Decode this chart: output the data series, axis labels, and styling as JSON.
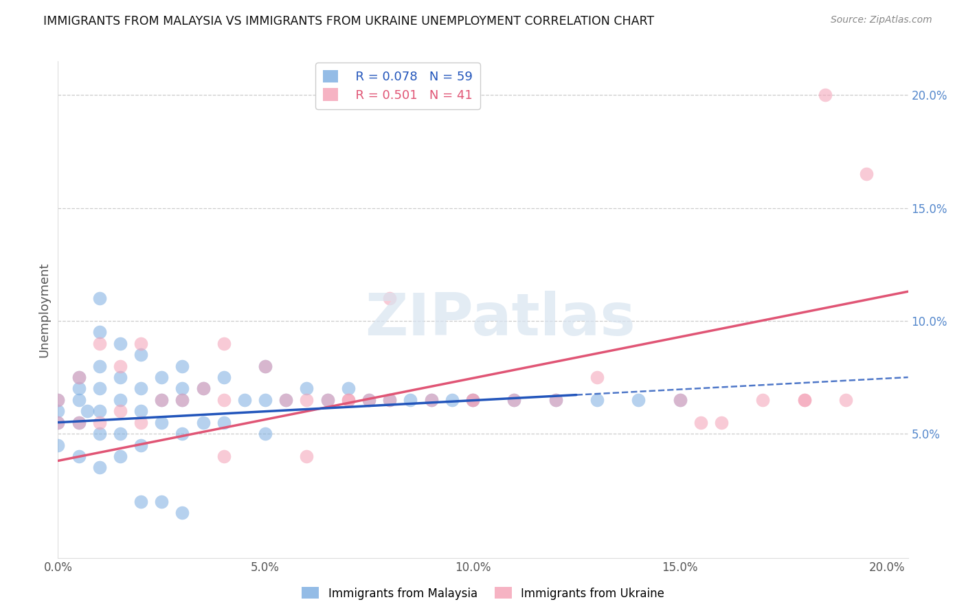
{
  "title": "IMMIGRANTS FROM MALAYSIA VS IMMIGRANTS FROM UKRAINE UNEMPLOYMENT CORRELATION CHART",
  "source": "Source: ZipAtlas.com",
  "ylabel": "Unemployment",
  "xlim": [
    0.0,
    0.205
  ],
  "ylim": [
    -0.005,
    0.215
  ],
  "xticks": [
    0.0,
    0.05,
    0.1,
    0.15,
    0.2
  ],
  "yticks": [
    0.05,
    0.1,
    0.15,
    0.2
  ],
  "xtick_labels": [
    "0.0%",
    "5.0%",
    "10.0%",
    "15.0%",
    "20.0%"
  ],
  "ytick_labels": [
    "5.0%",
    "10.0%",
    "15.0%",
    "20.0%"
  ],
  "malaysia_color": "#7aace0",
  "ukraine_color": "#f4a0b5",
  "malaysia_line_color": "#2255bb",
  "ukraine_line_color": "#e05575",
  "malaysia_R": 0.078,
  "malaysia_N": 59,
  "ukraine_R": 0.501,
  "ukraine_N": 41,
  "malaysia_x": [
    0.0,
    0.0,
    0.0,
    0.0,
    0.005,
    0.005,
    0.005,
    0.005,
    0.005,
    0.007,
    0.01,
    0.01,
    0.01,
    0.01,
    0.01,
    0.01,
    0.01,
    0.015,
    0.015,
    0.015,
    0.015,
    0.015,
    0.02,
    0.02,
    0.02,
    0.02,
    0.025,
    0.025,
    0.025,
    0.03,
    0.03,
    0.03,
    0.03,
    0.035,
    0.035,
    0.04,
    0.04,
    0.045,
    0.05,
    0.05,
    0.05,
    0.055,
    0.06,
    0.065,
    0.07,
    0.075,
    0.08,
    0.085,
    0.09,
    0.095,
    0.1,
    0.11,
    0.12,
    0.13,
    0.14,
    0.15,
    0.02,
    0.025,
    0.03
  ],
  "malaysia_y": [
    0.065,
    0.06,
    0.055,
    0.045,
    0.075,
    0.07,
    0.065,
    0.055,
    0.04,
    0.06,
    0.11,
    0.095,
    0.08,
    0.07,
    0.06,
    0.05,
    0.035,
    0.09,
    0.075,
    0.065,
    0.05,
    0.04,
    0.085,
    0.07,
    0.06,
    0.045,
    0.075,
    0.065,
    0.055,
    0.08,
    0.07,
    0.065,
    0.05,
    0.07,
    0.055,
    0.075,
    0.055,
    0.065,
    0.08,
    0.065,
    0.05,
    0.065,
    0.07,
    0.065,
    0.07,
    0.065,
    0.065,
    0.065,
    0.065,
    0.065,
    0.065,
    0.065,
    0.065,
    0.065,
    0.065,
    0.065,
    0.02,
    0.02,
    0.015
  ],
  "ukraine_x": [
    0.0,
    0.0,
    0.005,
    0.005,
    0.01,
    0.01,
    0.015,
    0.015,
    0.02,
    0.02,
    0.025,
    0.03,
    0.035,
    0.04,
    0.04,
    0.05,
    0.055,
    0.06,
    0.065,
    0.07,
    0.075,
    0.08,
    0.09,
    0.1,
    0.1,
    0.11,
    0.12,
    0.13,
    0.15,
    0.16,
    0.17,
    0.18,
    0.185,
    0.19,
    0.195,
    0.04,
    0.06,
    0.07,
    0.08,
    0.155,
    0.18
  ],
  "ukraine_y": [
    0.065,
    0.055,
    0.075,
    0.055,
    0.09,
    0.055,
    0.08,
    0.06,
    0.09,
    0.055,
    0.065,
    0.065,
    0.07,
    0.065,
    0.09,
    0.08,
    0.065,
    0.065,
    0.065,
    0.065,
    0.065,
    0.11,
    0.065,
    0.065,
    0.065,
    0.065,
    0.065,
    0.075,
    0.065,
    0.055,
    0.065,
    0.065,
    0.2,
    0.065,
    0.165,
    0.04,
    0.04,
    0.065,
    0.065,
    0.055,
    0.065
  ],
  "malaysia_line_x0": 0.0,
  "malaysia_line_x_solid_end": 0.125,
  "malaysia_line_x1": 0.205,
  "malaysia_line_y0": 0.055,
  "malaysia_line_y1": 0.075,
  "ukraine_line_x0": 0.0,
  "ukraine_line_x1": 0.205,
  "ukraine_line_y0": 0.038,
  "ukraine_line_y1": 0.113,
  "watermark_text": "ZIPatlas",
  "background_color": "#ffffff",
  "grid_color": "#cccccc",
  "tick_label_color": "#5588cc",
  "axis_label_color": "#555555"
}
